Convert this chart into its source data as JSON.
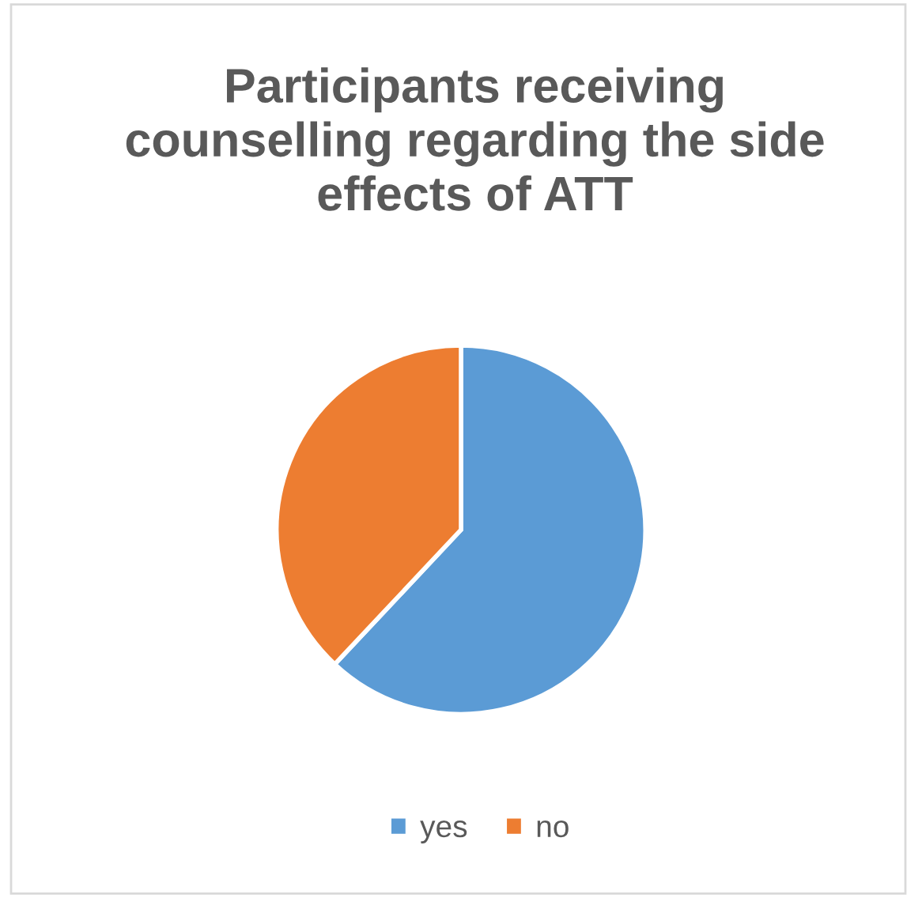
{
  "chart_data": {
    "type": "pie",
    "title": "Participants receiving counselling regarding the side effects of ATT",
    "categories": [
      "yes",
      "no"
    ],
    "values": [
      62,
      38
    ],
    "colors": [
      "#5b9bd5",
      "#ed7d31"
    ],
    "legend": "bottom"
  }
}
